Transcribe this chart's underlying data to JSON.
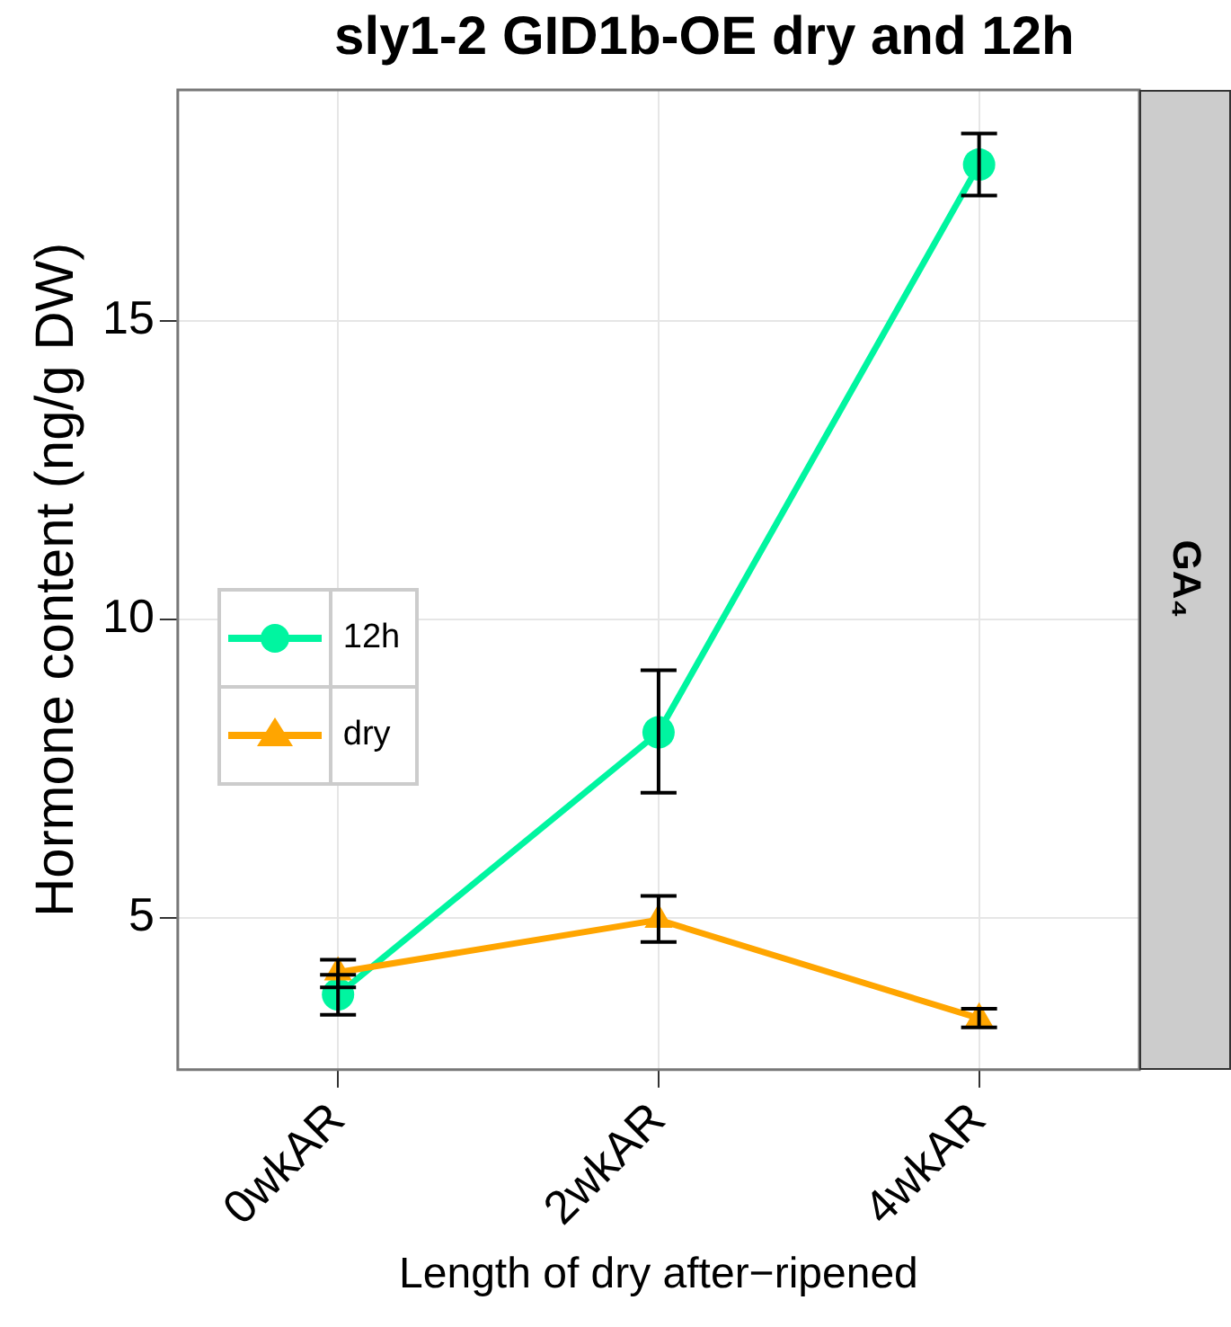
{
  "chart_data": {
    "type": "line",
    "title": "sly1-2 GID1b-OE dry and 12h",
    "xlabel": "Length of dry after−ripened",
    "ylabel": "Hormone content (ng/g DW)",
    "annotations": [
      "GA₄"
    ],
    "categories": [
      "0wkAR",
      "2wkAR",
      "4wkAR"
    ],
    "series": [
      {
        "name": "12h",
        "color": "#00f5a0",
        "marker": "circle",
        "values": [
          3.72,
          8.11,
          17.62
        ],
        "errors": [
          [
            3.38,
            4.05
          ],
          [
            7.1,
            9.15
          ],
          [
            17.1,
            18.14
          ]
        ]
      },
      {
        "name": "dry",
        "color": "#ffa500",
        "marker": "triangle",
        "values": [
          4.09,
          4.97,
          3.32
        ],
        "errors": [
          [
            3.84,
            4.3
          ],
          [
            4.6,
            5.37
          ],
          [
            3.17,
            3.48
          ]
        ]
      }
    ],
    "ylim": [
      2.46,
      18.87
    ],
    "yticks": [
      5,
      10,
      15
    ],
    "grid": true,
    "legend": "left"
  }
}
